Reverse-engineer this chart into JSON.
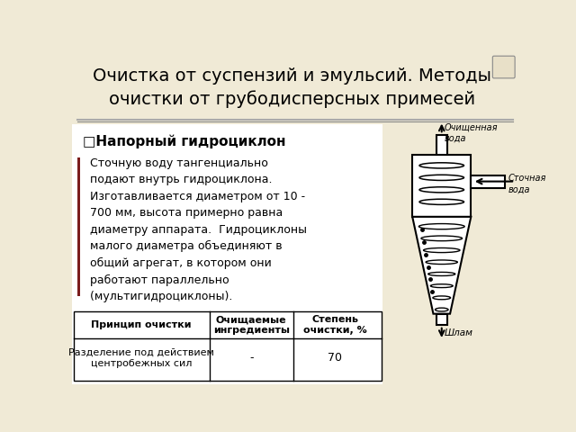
{
  "title": "Очистка от суспензий и эмульсий. Методы\nочистки от грубодисперсных примесей",
  "title_fontsize": 14,
  "bg_color": "#f0ead6",
  "bullet_header": "□Напорный гидроциклон",
  "body_text": "  Сточную воду тангенциально\n  подают внутрь гидроциклона.\n  Изготавливается диаметром от 10 -\n  700 мм, высота примерно равна\n  диаметру аппарата.  Гидроциклоны\n  малого диаметра объединяют в\n  общий агрегат, в котором они\n  работают параллельно\n  (мультигидроциклоны).",
  "table_headers": [
    "Принцип очистки",
    "Очищаемые\nингредиенты",
    "Степень\nочистки, %"
  ],
  "table_row": [
    "Разделение под действием\nцентробежных сил",
    "-",
    "70"
  ],
  "left_accent_color": "#7b1c1c",
  "separator_color": "#999999",
  "diagram_labels": {
    "clean_water": "Очищенная\nвода",
    "waste_water": "Сточная\nвода",
    "sludge": "Шлам"
  }
}
